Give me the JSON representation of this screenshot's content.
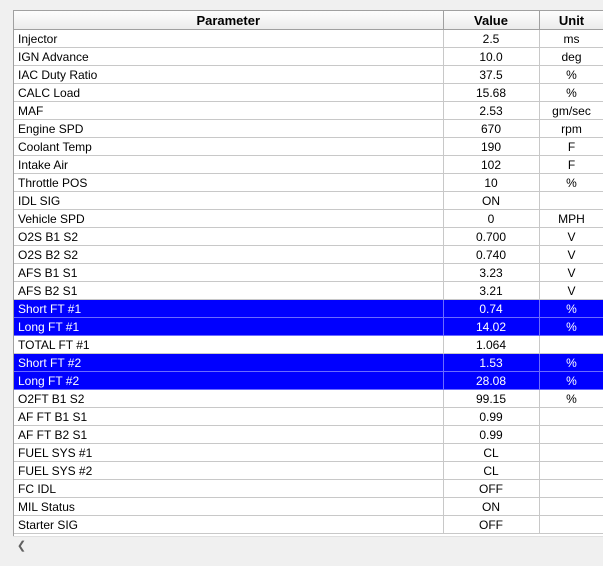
{
  "table": {
    "headers": {
      "parameter": "Parameter",
      "value": "Value",
      "unit": "Unit"
    },
    "rows": [
      {
        "parameter": "Injector",
        "value": "2.5",
        "unit": "ms",
        "selected": false
      },
      {
        "parameter": "IGN Advance",
        "value": "10.0",
        "unit": "deg",
        "selected": false
      },
      {
        "parameter": "IAC Duty Ratio",
        "value": "37.5",
        "unit": "%",
        "selected": false
      },
      {
        "parameter": "CALC Load",
        "value": "15.68",
        "unit": "%",
        "selected": false
      },
      {
        "parameter": "MAF",
        "value": "2.53",
        "unit": "gm/sec",
        "selected": false
      },
      {
        "parameter": "Engine SPD",
        "value": "670",
        "unit": "rpm",
        "selected": false
      },
      {
        "parameter": "Coolant Temp",
        "value": "190",
        "unit": "F",
        "selected": false
      },
      {
        "parameter": "Intake Air",
        "value": "102",
        "unit": "F",
        "selected": false
      },
      {
        "parameter": "Throttle POS",
        "value": "10",
        "unit": "%",
        "selected": false
      },
      {
        "parameter": "IDL SIG",
        "value": "ON",
        "unit": "",
        "selected": false
      },
      {
        "parameter": "Vehicle SPD",
        "value": "0",
        "unit": "MPH",
        "selected": false
      },
      {
        "parameter": "O2S B1 S2",
        "value": "0.700",
        "unit": "V",
        "selected": false
      },
      {
        "parameter": "O2S B2 S2",
        "value": "0.740",
        "unit": "V",
        "selected": false
      },
      {
        "parameter": "AFS B1 S1",
        "value": "3.23",
        "unit": "V",
        "selected": false
      },
      {
        "parameter": "AFS B2 S1",
        "value": "3.21",
        "unit": "V",
        "selected": false
      },
      {
        "parameter": "Short FT #1",
        "value": "0.74",
        "unit": "%",
        "selected": true
      },
      {
        "parameter": "Long FT #1",
        "value": "14.02",
        "unit": "%",
        "selected": true
      },
      {
        "parameter": "TOTAL FT #1",
        "value": "1.064",
        "unit": "",
        "selected": false
      },
      {
        "parameter": "Short FT #2",
        "value": "1.53",
        "unit": "%",
        "selected": true
      },
      {
        "parameter": "Long FT #2",
        "value": "28.08",
        "unit": "%",
        "selected": true
      },
      {
        "parameter": "O2FT B1 S2",
        "value": "99.15",
        "unit": "%",
        "selected": false
      },
      {
        "parameter": "AF FT B1 S1",
        "value": "0.99",
        "unit": "",
        "selected": false
      },
      {
        "parameter": "AF FT B2 S1",
        "value": "0.99",
        "unit": "",
        "selected": false
      },
      {
        "parameter": "FUEL SYS #1",
        "value": "CL",
        "unit": "",
        "selected": false
      },
      {
        "parameter": "FUEL SYS #2",
        "value": "CL",
        "unit": "",
        "selected": false
      },
      {
        "parameter": "FC IDL",
        "value": "OFF",
        "unit": "",
        "selected": false
      },
      {
        "parameter": "MIL Status",
        "value": "ON",
        "unit": "",
        "selected": false
      },
      {
        "parameter": "Starter SIG",
        "value": "OFF",
        "unit": "",
        "selected": false
      }
    ]
  },
  "colors": {
    "selection": "#0000ff",
    "selection_text": "#ffffff"
  },
  "scrollbar": {
    "left_arrow_icon": "chevron-left-icon"
  }
}
